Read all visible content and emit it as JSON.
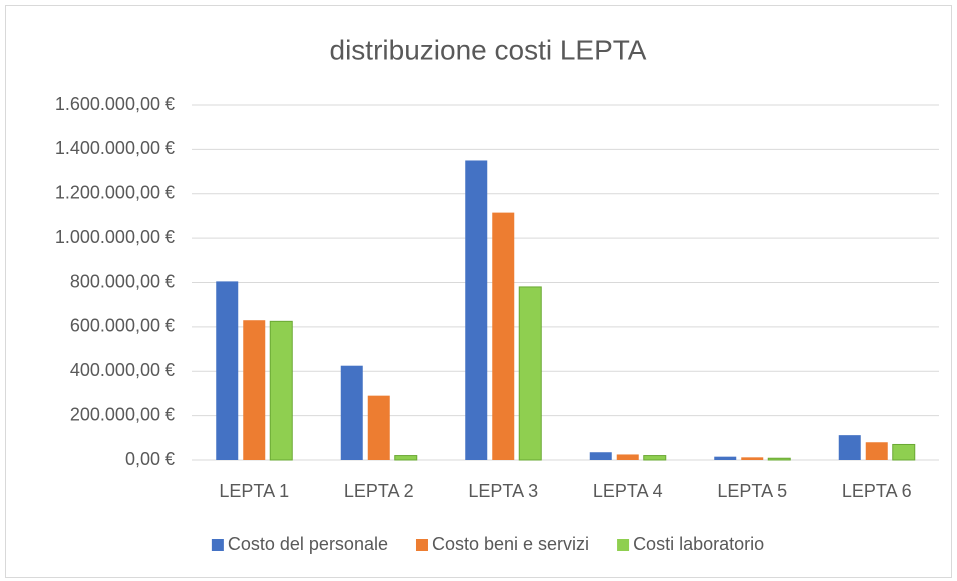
{
  "chart_data": {
    "type": "bar",
    "title": "distribuzione costi LEPTA",
    "categories": [
      "LEPTA 1",
      "LEPTA 2",
      "LEPTA 3",
      "LEPTA 4",
      "LEPTA 5",
      "LEPTA 6"
    ],
    "series": [
      {
        "name": "Costo del personale",
        "color": "#4472c4",
        "values": [
          805000,
          425000,
          1350000,
          35000,
          15000,
          112000
        ]
      },
      {
        "name": "Costo beni e servizi",
        "color": "#ed7d31",
        "values": [
          630000,
          290000,
          1115000,
          25000,
          12000,
          80000
        ]
      },
      {
        "name": "Costi laboratorio",
        "color": "#8fcf50",
        "values": [
          625000,
          20000,
          780000,
          20000,
          8000,
          70000
        ]
      }
    ],
    "ylim": [
      0,
      1600000
    ],
    "yticks": [
      {
        "value": 0,
        "label": "0,00 €"
      },
      {
        "value": 200000,
        "label": "200.000,00 €"
      },
      {
        "value": 400000,
        "label": "400.000,00 €"
      },
      {
        "value": 600000,
        "label": "600.000,00 €"
      },
      {
        "value": 800000,
        "label": "800.000,00 €"
      },
      {
        "value": 1000000,
        "label": "1.000.000,00 €"
      },
      {
        "value": 1200000,
        "label": "1.200.000,00 €"
      },
      {
        "value": 1400000,
        "label": "1.400.000,00 €"
      },
      {
        "value": 1600000,
        "label": "1.600.000,00 €"
      }
    ],
    "grid": true,
    "legend": "bottom"
  }
}
